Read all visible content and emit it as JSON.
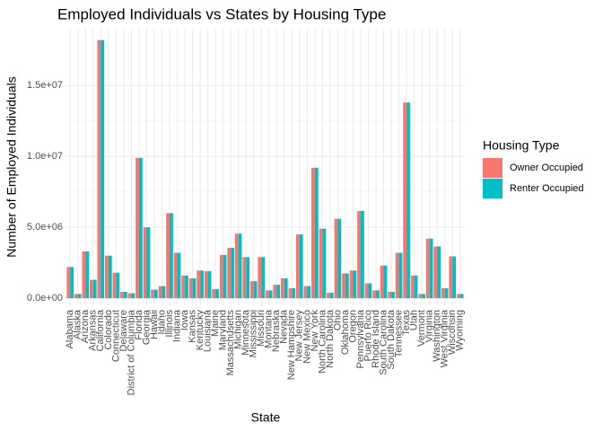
{
  "chart_data": {
    "type": "bar",
    "title": "Employed Individuals vs States by Housing Type",
    "x_label": "State",
    "y_label": "Number of Employed Individuals",
    "legend_title": "Housing Type",
    "categories": [
      "Alabama",
      "Alaska",
      "Arizona",
      "Arkansas",
      "California",
      "Colorado",
      "Connecticut",
      "Delaware",
      "District of Columbia",
      "Florida",
      "Georgia",
      "Hawaii",
      "Idaho",
      "Illinois",
      "Indiana",
      "Iowa",
      "Kansas",
      "Kentucky",
      "Louisiana",
      "Maine",
      "Maryland",
      "Massachusetts",
      "Michigan",
      "Minnesota",
      "Mississippi",
      "Missouri",
      "Montana",
      "Nebraska",
      "Nevada",
      "New Hampshire",
      "New Jersey",
      "New Mexico",
      "New York",
      "North Carolina",
      "North Dakota",
      "Ohio",
      "Oklahoma",
      "Oregon",
      "Pennsylvania",
      "Puerto Rico",
      "Rhode Island",
      "South Carolina",
      "South Dakota",
      "Tennessee",
      "Texas",
      "Utah",
      "Vermont",
      "Virginia",
      "Washington",
      "West Virginia",
      "Wisconsin",
      "Wyoming"
    ],
    "series": [
      {
        "name": "Owner Occupied",
        "color": "#f8766d",
        "values": [
          2200000,
          300000,
          3300000,
          1300000,
          18200000,
          3000000,
          1800000,
          450000,
          350000,
          9900000,
          5000000,
          600000,
          850000,
          6000000,
          3200000,
          1600000,
          1400000,
          1950000,
          1900000,
          650000,
          3050000,
          3550000,
          4550000,
          2900000,
          1200000,
          2900000,
          550000,
          950000,
          1400000,
          700000,
          4500000,
          850000,
          9200000,
          4900000,
          380000,
          5600000,
          1750000,
          1950000,
          6150000,
          1050000,
          550000,
          2300000,
          450000,
          3200000,
          13800000,
          1600000,
          300000,
          4200000,
          3650000,
          700000,
          2950000,
          300000
        ]
      },
      {
        "name": "Renter Occupied",
        "color": "#00bfc4",
        "values": [
          2200000,
          300000,
          3300000,
          1300000,
          18200000,
          3000000,
          1800000,
          450000,
          350000,
          9900000,
          5000000,
          600000,
          850000,
          6000000,
          3200000,
          1600000,
          1400000,
          1950000,
          1900000,
          650000,
          3050000,
          3550000,
          4550000,
          2900000,
          1200000,
          2900000,
          550000,
          950000,
          1400000,
          700000,
          4500000,
          850000,
          9200000,
          4900000,
          380000,
          5600000,
          1750000,
          1950000,
          6150000,
          1050000,
          550000,
          2300000,
          450000,
          3200000,
          13800000,
          1600000,
          300000,
          4200000,
          3650000,
          700000,
          2950000,
          300000
        ]
      }
    ],
    "ylim": [
      -500000,
      19000000
    ],
    "yticks": [
      {
        "value": 0,
        "label": "0.0e+00"
      },
      {
        "value": 5000000,
        "label": "5.0e+06"
      },
      {
        "value": 10000000,
        "label": "1.0e+07"
      },
      {
        "value": 15000000,
        "label": "1.5e+07"
      }
    ],
    "grid": true,
    "legend_position": "right"
  }
}
